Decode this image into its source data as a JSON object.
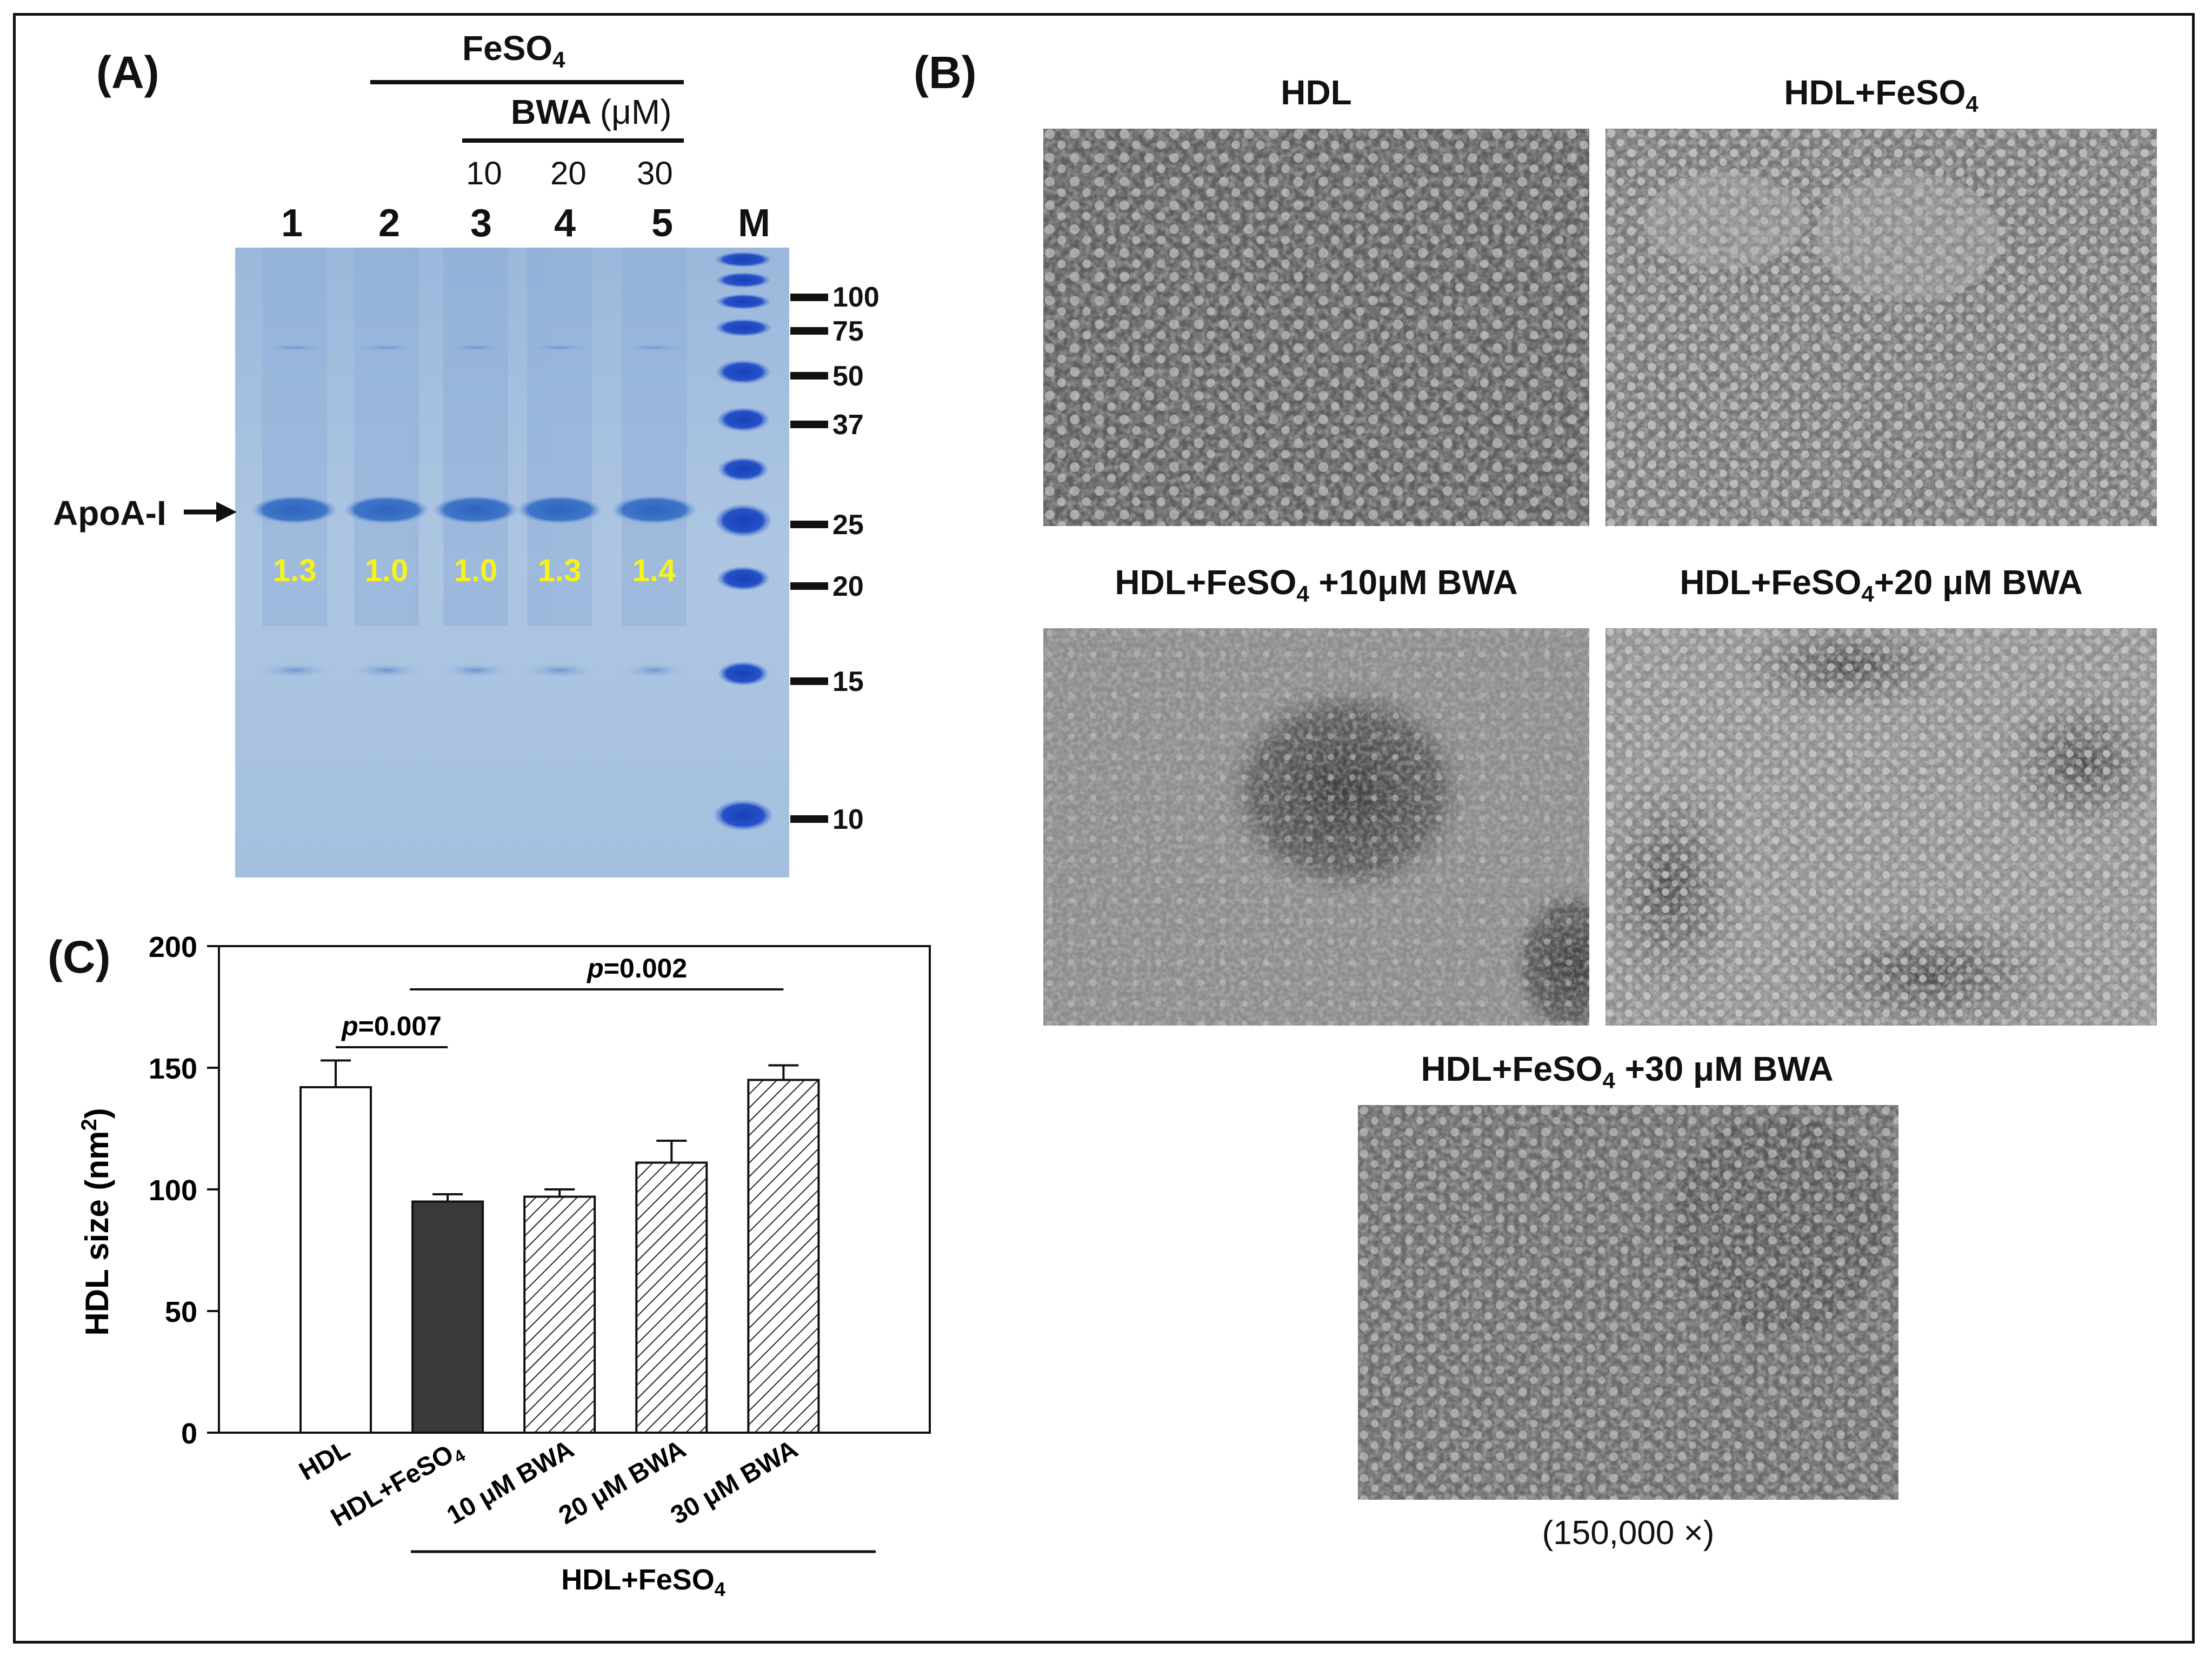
{
  "panel_a": {
    "letter": "(A)",
    "feso4": "FeSO",
    "feso4_sub": "4",
    "bwa": "BWA",
    "bwa_unit": "(μM)",
    "concentrations": [
      "10",
      "20",
      "30"
    ],
    "lanes": [
      "1",
      "2",
      "3",
      "4",
      "5",
      "M"
    ],
    "apoa_label": "ApoA-I",
    "ratios": [
      "1.3",
      "1.0",
      "1.0",
      "1.3",
      "1.4"
    ],
    "markers": [
      "100",
      "75",
      "50",
      "37",
      "25",
      "20",
      "15",
      "10"
    ],
    "colors": {
      "gel": "#a9c3e0",
      "band": "#3d74c6",
      "marker": "#1f4fc4",
      "ratio_text": "#f6f21c"
    }
  },
  "panel_b": {
    "letter": "(B)",
    "titles": {
      "hdl": "HDL",
      "hdl_fe": "HDL+FeSO",
      "hdl_fe_10_a": "HDL+FeSO",
      "hdl_fe_10_b": " +10μM BWA",
      "hdl_fe_20_a": "HDL+FeSO",
      "hdl_fe_20_b": "+20 μM BWA",
      "hdl_fe_30_a": "HDL+FeSO",
      "hdl_fe_30_b": " +30 μM BWA",
      "sub": "4"
    },
    "magnification": "(150,000 ×)"
  },
  "panel_c": {
    "letter": "(C)",
    "p1": "=0.007",
    "p2": "=0.002",
    "p_symbol": "p",
    "group_label": "HDL+FeSO",
    "group_label_sub": "4"
  },
  "chart_data": {
    "type": "bar",
    "categories": [
      "HDL",
      "HDL+FeSO4",
      "10 μM BWA",
      "20 μM BWA",
      "30 μM BWA"
    ],
    "values": [
      142,
      95,
      97,
      111,
      145
    ],
    "errors": [
      11,
      3,
      3,
      9,
      6
    ],
    "fills": [
      "white",
      "dark",
      "hatched",
      "hatched",
      "hatched"
    ],
    "ylabel": "HDL size (nm2)",
    "ylim": [
      0,
      200
    ],
    "yticks": [
      0,
      50,
      100,
      150,
      200
    ],
    "annotations": [
      "p=0.007",
      "p=0.002"
    ]
  }
}
